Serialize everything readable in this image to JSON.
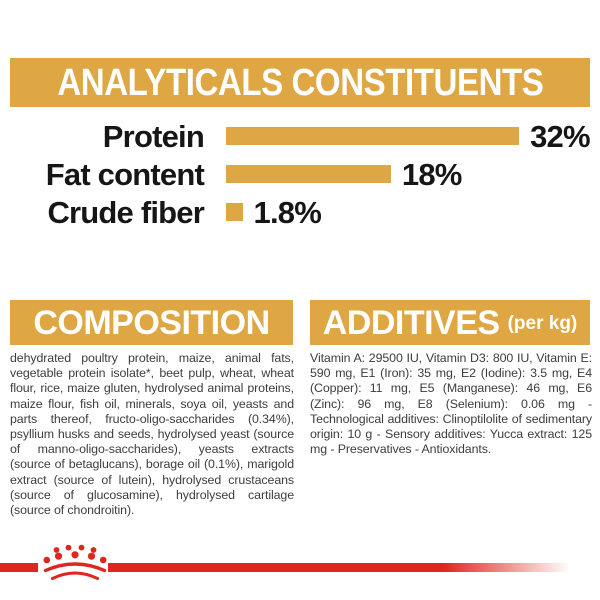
{
  "colors": {
    "gold": "#DFA743",
    "red": "#E0251C",
    "body_text": "#3D3D3C",
    "chart_text": "#161616"
  },
  "header": {
    "title": "ANALYTICALS CONSTITUENTS"
  },
  "chart_data": {
    "type": "bar",
    "orientation": "horizontal",
    "title": "ANALYTICALS CONSTITUENTS",
    "categories": [
      "Protein",
      "Fat content",
      "Crude fiber"
    ],
    "values": [
      32,
      18,
      1.8
    ],
    "value_labels": [
      "32%",
      "18%",
      "1.8%"
    ],
    "unit": "%",
    "xlim": [
      0,
      32
    ],
    "bar_color": "#DFA743",
    "grid": false,
    "legend": false
  },
  "sections": {
    "composition": {
      "title": "COMPOSITION",
      "body": "dehydrated poultry protein, maize, animal fats, vegetable protein isolate*, beet pulp, wheat, wheat flour, rice, maize gluten, hydrolysed animal proteins, maize flour, fish oil, minerals, soya oil, yeasts and parts thereof, fructo-oligo-saccharides (0.34%), psyllium husks and seeds, hydrolysed yeast (source of manno-oligo-saccharides), yeasts extracts (source of betaglucans), borage oil (0.1%), marigold extract (source of lutein), hydrolysed crustaceans (source of glucosamine), hydrolysed cartilage (source of chondroitin)."
    },
    "additives": {
      "title": "ADDITIVES",
      "title_suffix": "(per kg)",
      "body": "Vitamin A: 29500 IU, Vitamin D3: 800 IU, Vitamin E: 590 mg, E1 (Iron): 35 mg, E2 (Iodine): 3.5 mg, E4 (Copper): 11 mg, E5 (Manganese): 46 mg, E6 (Zinc): 96 mg, E8 (Selenium): 0.06 mg - Technological additives: Clinoptilolite of sedimentary origin: 10 g - Sensory additives: Yucca extract: 125 mg - Preservatives - Antioxidants."
    }
  },
  "footer": {
    "brand_mark": "royal-canin-crown"
  }
}
